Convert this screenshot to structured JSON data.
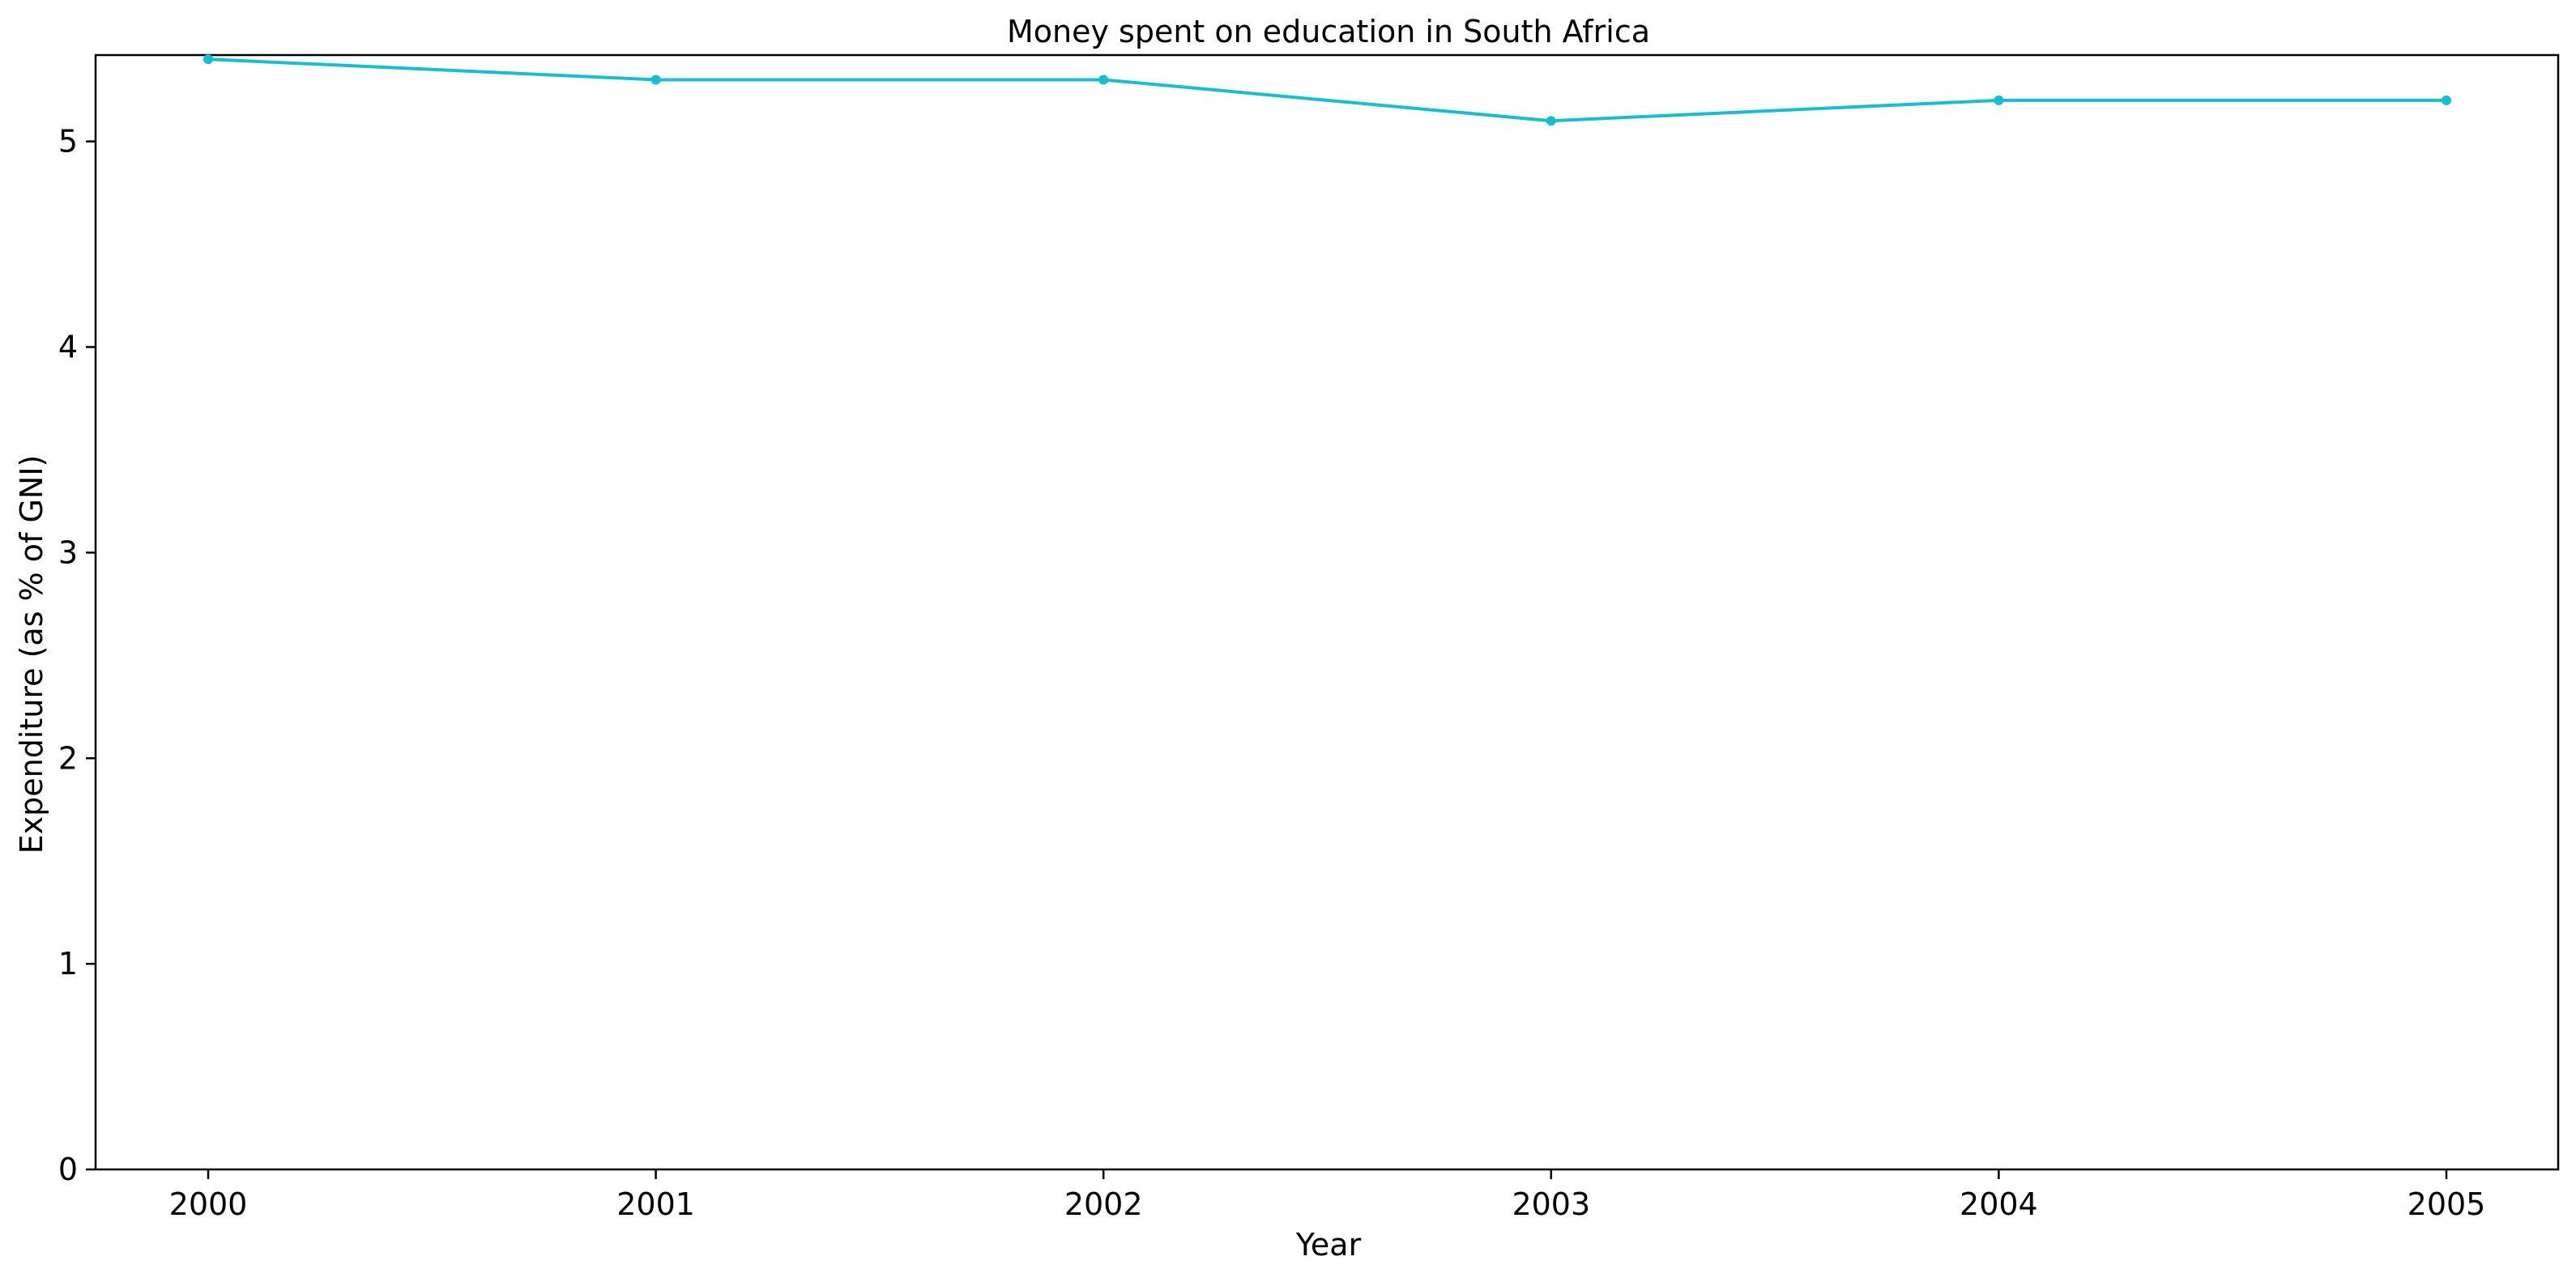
{
  "chart_data": {
    "type": "line",
    "title": "Money spent on education in South Africa",
    "xlabel": "Year",
    "ylabel": "Expenditure (as % of GNI)",
    "x": [
      "2000",
      "2001",
      "2002",
      "2003",
      "2004",
      "2005"
    ],
    "series": [
      {
        "values": [
          5.4,
          5.3,
          5.3,
          5.1,
          5.2,
          5.2
        ],
        "color": "#17becf"
      }
    ],
    "ylim": [
      0,
      5.42
    ],
    "yticks": [
      "0",
      "1",
      "2",
      "3",
      "4",
      "5"
    ],
    "grid": false,
    "legend": "none"
  }
}
